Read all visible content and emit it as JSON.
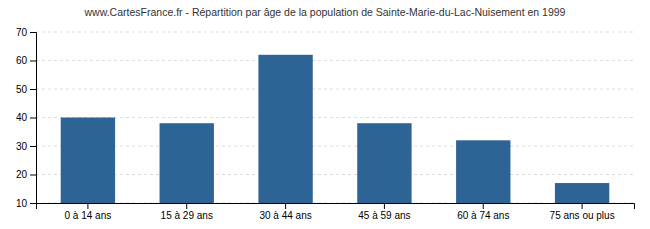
{
  "chart_data": {
    "type": "bar",
    "title": "www.CartesFrance.fr - Répartition par âge de la population de Sainte-Marie-du-Lac-Nuisement en 1999",
    "categories": [
      "0 à 14 ans",
      "15 à 29 ans",
      "30 à 44 ans",
      "45 à 59 ans",
      "60 à 74 ans",
      "75 ans ou plus"
    ],
    "values": [
      40,
      38,
      62,
      38,
      32,
      17
    ],
    "color": "#2e6395",
    "ylim": [
      10,
      70
    ],
    "yticks": [
      10,
      20,
      30,
      40,
      50,
      60,
      70
    ],
    "grid": true
  }
}
